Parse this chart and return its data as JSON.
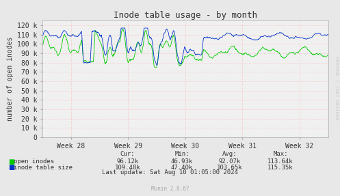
{
  "title": "Inode table usage - by month",
  "ylabel": "number of open inodes",
  "background_color": "#e8e8e8",
  "plot_bg_color": "#f0f0f0",
  "grid_color": "#ff9999",
  "title_color": "#333333",
  "tick_label_color": "#333333",
  "ylim": [
    0,
    125000
  ],
  "yticks": [
    0,
    10000,
    20000,
    30000,
    40000,
    50000,
    60000,
    70000,
    80000,
    90000,
    100000,
    110000,
    120000
  ],
  "ytick_labels": [
    "0",
    "10 k",
    "20 k",
    "30 k",
    "40 k",
    "50 k",
    "60 k",
    "70 k",
    "80 k",
    "90 k",
    "100 k",
    "110 k",
    "120 k"
  ],
  "xtick_labels": [
    "Week 28",
    "Week 29",
    "Week 30",
    "Week 31",
    "Week 32"
  ],
  "green_color": "#00cc00",
  "blue_color": "#0033cc",
  "legend_items": [
    "open inodes",
    "inode table size"
  ],
  "legend_colors": [
    "#00cc00",
    "#0033cc"
  ],
  "stats_header": [
    "Cur:",
    "Min:",
    "Avg:",
    "Max:"
  ],
  "stats_green": [
    "96.12k",
    "46.93k",
    "92.07k",
    "113.64k"
  ],
  "stats_blue": [
    "109.48k",
    "47.40k",
    "103.65k",
    "115.35k"
  ],
  "last_update": "Last update: Sat Aug 10 01:05:00 2024",
  "munin_version": "Munin 2.0.67",
  "watermark": "RRDTOOL / TOBI OETIKER",
  "font_family": "DejaVu Sans Mono",
  "font_size_title": 9,
  "font_size_tick": 7,
  "font_size_legend": 6.5,
  "font_size_munin": 5.5,
  "font_size_watermark": 5
}
